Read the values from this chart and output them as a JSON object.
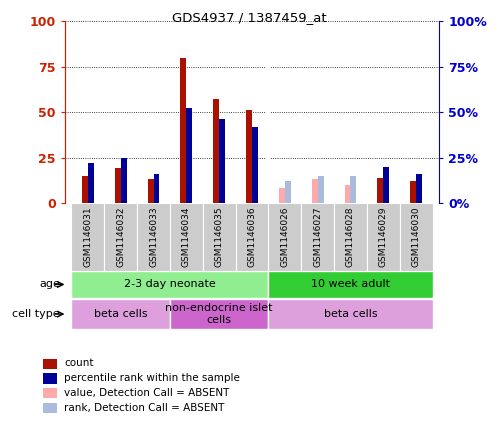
{
  "title": "GDS4937 / 1387459_at",
  "samples": [
    "GSM1146031",
    "GSM1146032",
    "GSM1146033",
    "GSM1146034",
    "GSM1146035",
    "GSM1146036",
    "GSM1146026",
    "GSM1146027",
    "GSM1146028",
    "GSM1146029",
    "GSM1146030"
  ],
  "count_values": [
    15,
    19,
    13,
    80,
    57,
    51,
    0,
    0,
    0,
    14,
    12
  ],
  "rank_values": [
    22,
    25,
    16,
    52,
    46,
    42,
    0,
    0,
    0,
    20,
    16
  ],
  "absent_count": [
    0,
    0,
    0,
    0,
    0,
    0,
    8,
    13,
    10,
    0,
    0
  ],
  "absent_rank": [
    0,
    0,
    0,
    0,
    0,
    0,
    12,
    15,
    15,
    0,
    0
  ],
  "age_groups": [
    {
      "label": "2-3 day neonate",
      "start": 0,
      "end": 6,
      "color": "#90EE90"
    },
    {
      "label": "10 week adult",
      "start": 6,
      "end": 11,
      "color": "#32CD32"
    }
  ],
  "cell_type_groups": [
    {
      "label": "beta cells",
      "start": 0,
      "end": 3,
      "color": "#DDA0DD"
    },
    {
      "label": "non-endocrine islet\ncells",
      "start": 3,
      "end": 6,
      "color": "#CC66CC"
    },
    {
      "label": "beta cells",
      "start": 6,
      "end": 11,
      "color": "#DDA0DD"
    }
  ],
  "bar_width": 0.18,
  "ylim": [
    0,
    100
  ],
  "yticks": [
    0,
    25,
    50,
    75,
    100
  ],
  "left_axis_color": "#CC2200",
  "right_axis_color": "#0000CC",
  "bar_color_count": "#AA1100",
  "bar_color_rank": "#000099",
  "bar_color_absent_count": "#FFAAAA",
  "bar_color_absent_rank": "#AABBDD",
  "tick_bg_color": "#CCCCCC",
  "left_label_color": "#666666"
}
